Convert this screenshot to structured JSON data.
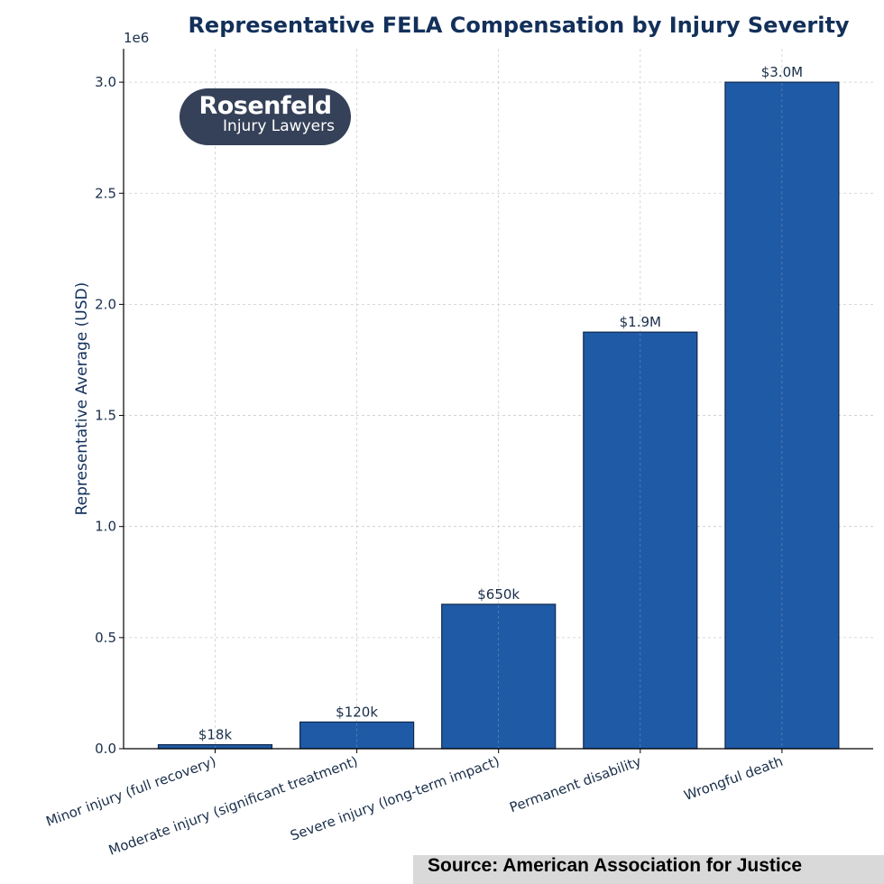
{
  "chart_data": {
    "type": "bar",
    "title": "Representative FELA Compensation by Injury Severity",
    "xlabel": "",
    "ylabel": "Representative Average (USD)",
    "y_offset_label": "1e6",
    "categories": [
      "Minor injury (full recovery)",
      "Moderate injury (significant treatment)",
      "Severe injury (long-term impact)",
      "Permanent disability",
      "Wrongful death"
    ],
    "values": [
      18000,
      120000,
      650000,
      1875000,
      3000000
    ],
    "data_labels": [
      "$18k",
      "$120k",
      "$650k",
      "$1.9M",
      "$3.0M"
    ],
    "ylim": [
      0,
      3150000
    ],
    "yticks": [
      0,
      500000,
      1000000,
      1500000,
      2000000,
      2500000,
      3000000
    ],
    "ytick_labels": [
      "0.0",
      "0.5",
      "1.0",
      "1.5",
      "2.0",
      "2.5",
      "3.0"
    ],
    "grid": true,
    "colors": {
      "bar": "#1f5aa6",
      "bar_edge": "#0f2a4d",
      "text": "#1a2e4a",
      "title": "#12305a",
      "grid": "#cccccc"
    }
  },
  "logo": {
    "name": "Rosenfeld",
    "tagline": "Injury Lawyers"
  },
  "source": "Source: American Association for Justice"
}
